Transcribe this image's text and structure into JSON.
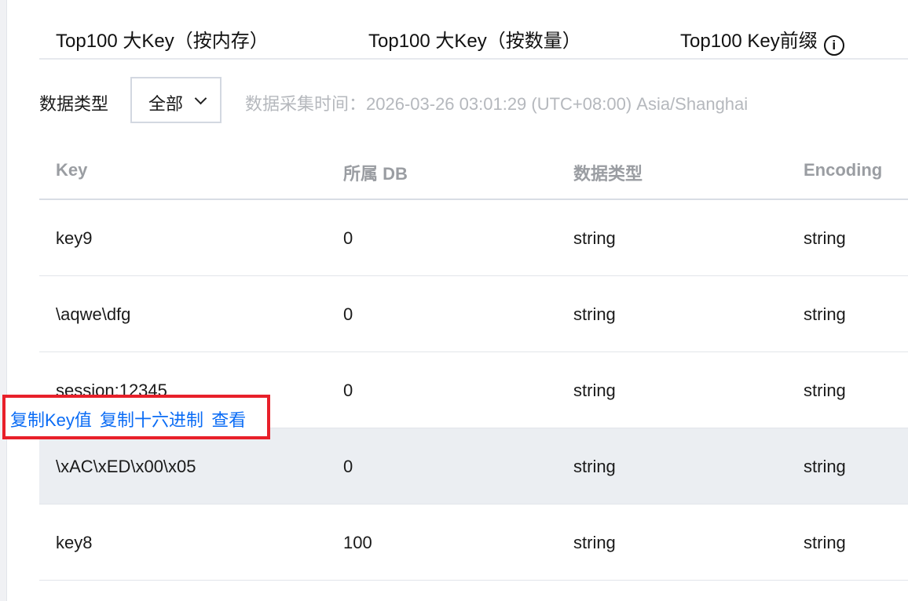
{
  "tabs": [
    {
      "label": "Top100 大Key（按内存）"
    },
    {
      "label": "Top100 大Key（按数量）"
    },
    {
      "label": "Top100 Key前缀"
    }
  ],
  "filter": {
    "label": "数据类型",
    "selected": "全部",
    "collect_time": "数据采集时间：2026-03-26 03:01:29 (UTC+08:00) Asia/Shanghai"
  },
  "table": {
    "headers": [
      "Key",
      "所属 DB",
      "数据类型",
      "Encoding"
    ],
    "rows": [
      [
        "key9",
        "0",
        "string",
        "string"
      ],
      [
        "\\aqwe\\dfg",
        "0",
        "string",
        "string"
      ],
      [
        "session:12345",
        "0",
        "string",
        "string"
      ],
      [
        "\\xAC\\xED\\x00\\x05",
        "0",
        "string",
        "string"
      ],
      [
        "key8",
        "100",
        "string",
        "string"
      ]
    ]
  },
  "popup": {
    "copy_key": "复制Key值",
    "copy_hex": "复制十六进制",
    "view": "查看"
  },
  "colors": {
    "link": "#0a6cf5",
    "highlight_border": "#e8202a",
    "hover_row": "#ebeef2"
  }
}
